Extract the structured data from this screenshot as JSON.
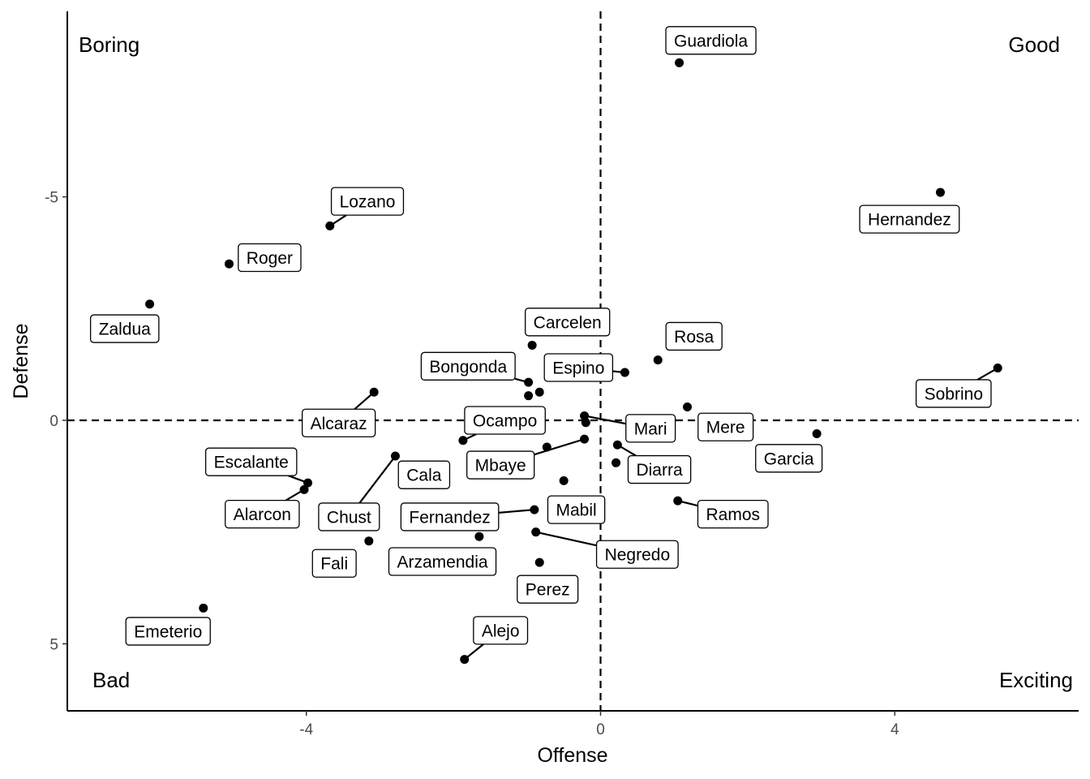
{
  "chart_data": {
    "type": "scatter",
    "xlabel": "Offense",
    "ylabel": "Defense",
    "xlim": [
      -7.25,
      6.5
    ],
    "ylim": [
      -9.15,
      6.5
    ],
    "y_reversed": true,
    "x_ticks": [
      -4,
      0,
      4
    ],
    "x_tick_labels": [
      "-4",
      "0",
      "4"
    ],
    "y_ticks": [
      -5,
      0,
      5
    ],
    "y_tick_labels": [
      "-5",
      "0",
      "5"
    ],
    "grid": false,
    "reference_lines": {
      "x": 0,
      "y": 0,
      "style": "dashed"
    },
    "quadrant_labels": {
      "top_left": "Boring",
      "top_right": "Good",
      "bottom_left": "Bad",
      "bottom_right": "Exciting"
    },
    "points": [
      {
        "label": "Guardiola",
        "x": 1.07,
        "y": -8.0
      },
      {
        "label": "Hernandez",
        "x": 4.62,
        "y": -5.1
      },
      {
        "label": "Lozano",
        "x": -3.68,
        "y": -4.35
      },
      {
        "label": "Roger",
        "x": -5.05,
        "y": -3.5
      },
      {
        "label": "Zaldua",
        "x": -6.13,
        "y": -2.6
      },
      {
        "label": "Carcelen",
        "x": -0.93,
        "y": -1.68
      },
      {
        "label": "Rosa",
        "x": 0.78,
        "y": -1.35
      },
      {
        "label": "Sobrino",
        "x": 5.4,
        "y": -1.17
      },
      {
        "label": "Espino",
        "x": 0.33,
        "y": -1.07
      },
      {
        "label": "Bongonda",
        "x": -0.98,
        "y": -0.85
      },
      {
        "label": "Alcaraz",
        "x": -3.08,
        "y": -0.63
      },
      {
        "label": "Bongonda-2",
        "x": -0.83,
        "y": -0.63
      },
      {
        "label": "Bongonda-3",
        "x": -0.98,
        "y": -0.55
      },
      {
        "label": "Mere",
        "x": 1.18,
        "y": -0.3
      },
      {
        "label": "Mari",
        "x": -0.22,
        "y": -0.1
      },
      {
        "label": "Mari-2",
        "x": -0.2,
        "y": 0.05
      },
      {
        "label": "Garcia",
        "x": 2.94,
        "y": 0.3
      },
      {
        "label": "Mbaye",
        "x": -0.22,
        "y": 0.42
      },
      {
        "label": "Ocampo",
        "x": -1.87,
        "y": 0.45
      },
      {
        "label": "Diarra",
        "x": 0.23,
        "y": 0.55
      },
      {
        "label": "Mbaye-2",
        "x": -0.73,
        "y": 0.6
      },
      {
        "label": "Cala",
        "x": -2.79,
        "y": 0.8
      },
      {
        "label": "Diarra-2",
        "x": 0.21,
        "y": 0.95
      },
      {
        "label": "Mbaye-3",
        "x": -0.5,
        "y": 1.35
      },
      {
        "label": "Escalante",
        "x": -3.98,
        "y": 1.4
      },
      {
        "label": "Escalante-2",
        "x": -4.03,
        "y": 1.55
      },
      {
        "label": "Ramos",
        "x": 1.05,
        "y": 1.8
      },
      {
        "label": "Mabil",
        "x": -0.9,
        "y": 2.0
      },
      {
        "label": "Negredo",
        "x": -0.88,
        "y": 2.5
      },
      {
        "label": "Arzamendia",
        "x": -1.65,
        "y": 2.6
      },
      {
        "label": "Fali",
        "x": -3.15,
        "y": 2.7
      },
      {
        "label": "Perez",
        "x": -0.83,
        "y": 3.18
      },
      {
        "label": "Emeterio",
        "x": -5.4,
        "y": 4.2
      },
      {
        "label": "Alejo",
        "x": -1.85,
        "y": 5.35
      }
    ],
    "labels": [
      {
        "text": "Guardiola",
        "x": 1.5,
        "y": -8.5,
        "point": 0
      },
      {
        "text": "Hernandez",
        "x": 4.2,
        "y": -4.5,
        "point": 1
      },
      {
        "text": "Lozano",
        "x": -3.17,
        "y": -4.9,
        "point": 2
      },
      {
        "text": "Roger",
        "x": -4.5,
        "y": -3.64,
        "point": 3
      },
      {
        "text": "Zaldua",
        "x": -6.47,
        "y": -2.05,
        "point": 4
      },
      {
        "text": "Carcelen",
        "x": -0.45,
        "y": -2.2,
        "point": 5
      },
      {
        "text": "Rosa",
        "x": 1.27,
        "y": -1.88,
        "point": 6
      },
      {
        "text": "Sobrino",
        "x": 4.8,
        "y": -0.6,
        "point": 7
      },
      {
        "text": "Espino",
        "x": -0.3,
        "y": -1.18,
        "point": 8
      },
      {
        "text": "Bongonda",
        "x": -1.8,
        "y": -1.21,
        "point": 9
      },
      {
        "text": "Alcaraz",
        "x": -3.56,
        "y": 0.06,
        "point": 10
      },
      {
        "text": "Mere",
        "x": 1.7,
        "y": 0.15,
        "point": 13
      },
      {
        "text": "Mari",
        "x": 0.68,
        "y": 0.18,
        "point": 14
      },
      {
        "text": "Garcia",
        "x": 2.56,
        "y": 0.85,
        "point": 16
      },
      {
        "text": "Ocampo",
        "x": -1.3,
        "y": 0.0,
        "point": 18
      },
      {
        "text": "Mbaye",
        "x": -1.36,
        "y": 1.0,
        "point": 17
      },
      {
        "text": "Diarra",
        "x": 0.8,
        "y": 1.1,
        "point": 19
      },
      {
        "text": "Cala",
        "x": -2.4,
        "y": 1.22,
        "point": 21
      },
      {
        "text": "Escalante",
        "x": -4.75,
        "y": 0.93,
        "point": 24
      },
      {
        "text": "Ramos",
        "x": 1.8,
        "y": 2.1,
        "point": 26
      },
      {
        "text": "Mabil",
        "x": -0.33,
        "y": 2.0,
        "point": 27
      },
      {
        "text": "Alarcon",
        "x": -4.6,
        "y": 2.1,
        "point": 25
      },
      {
        "text": "Chust",
        "x": -3.42,
        "y": 2.16,
        "point": 21
      },
      {
        "text": "Fernandez",
        "x": -2.05,
        "y": 2.16,
        "point": 27
      },
      {
        "text": "Negredo",
        "x": 0.5,
        "y": 3.0,
        "point": 28
      },
      {
        "text": "Arzamendia",
        "x": -2.15,
        "y": 3.16,
        "point": 29
      },
      {
        "text": "Fali",
        "x": -3.62,
        "y": 3.2,
        "point": 30
      },
      {
        "text": "Perez",
        "x": -0.72,
        "y": 3.78,
        "point": 31
      },
      {
        "text": "Emeterio",
        "x": -5.88,
        "y": 4.72,
        "point": 32
      },
      {
        "text": "Alejo",
        "x": -1.36,
        "y": 4.7,
        "point": 33
      }
    ]
  }
}
